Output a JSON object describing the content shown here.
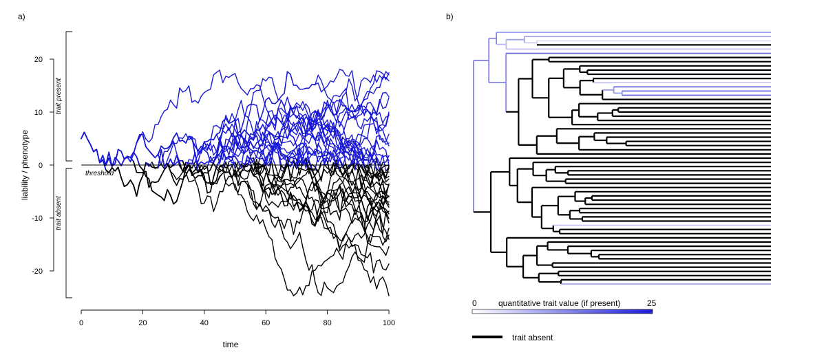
{
  "panel_a_label": "a)",
  "panel_b_label": "b)",
  "chart_data": [
    {
      "type": "line",
      "title": "",
      "xlabel": "time",
      "ylabel": "liability / phenotype",
      "xlim": [
        0,
        100
      ],
      "ylim": [
        -25,
        25
      ],
      "xticks": [
        0,
        20,
        40,
        60,
        80,
        100
      ],
      "yticks": [
        20,
        10,
        0,
        -10,
        -20
      ],
      "threshold_value": 0,
      "threshold_label": "threshold",
      "region_labels": {
        "above": "trait present",
        "below": "trait absent"
      },
      "colors": {
        "present": "#1a1ad6",
        "absent": "#000000"
      },
      "n_lineages": 40,
      "start_value": 5,
      "grid": false
    },
    {
      "type": "tree",
      "title": "",
      "description_colors": {
        "low": "#ffffff",
        "high": "#1a1ad6",
        "absent": "#000000"
      },
      "colorbar": {
        "min": 0,
        "max": 25,
        "label": "quantitative trait value (if present)"
      },
      "absent_legend_label": "trait absent"
    }
  ]
}
